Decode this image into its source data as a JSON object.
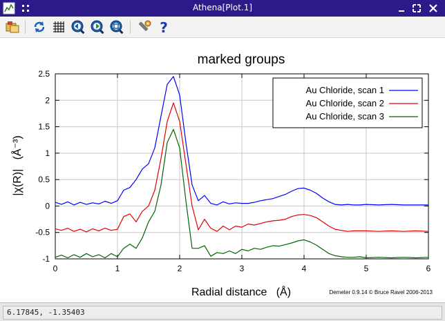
{
  "window": {
    "title": "Athena[Plot.1]",
    "controls": [
      "minimize-icon",
      "maximize-icon",
      "close-icon"
    ]
  },
  "toolbar": {
    "buttons": [
      {
        "name": "open-icon",
        "tooltip": ""
      },
      {
        "name": "refresh-icon",
        "tooltip": ""
      },
      {
        "name": "grid-icon",
        "tooltip": ""
      },
      {
        "name": "zoom-back-icon",
        "tooltip": ""
      },
      {
        "name": "zoom-forward-icon",
        "tooltip": ""
      },
      {
        "name": "zoom-icon",
        "tooltip": ""
      },
      {
        "name": "settings-icon",
        "tooltip": ""
      },
      {
        "name": "help-icon",
        "tooltip": ""
      }
    ]
  },
  "plot": {
    "credit": "Demeter 0.9.14 © Bruce Ravel 2006-2013"
  },
  "chart_data": {
    "type": "line",
    "title": "marked groups",
    "xlabel": "Radial distance   (Å)",
    "ylabel": "|χ(R)|   (Å⁻³)",
    "xlim": [
      0,
      6
    ],
    "ylim": [
      -1,
      2.5
    ],
    "xticks": [
      "0",
      "1",
      "2",
      "3",
      "4",
      "5",
      "6"
    ],
    "yticks": [
      "-1",
      "-0.5",
      "0",
      "0.5",
      "1",
      "1.5",
      "2",
      "2.5"
    ],
    "grid": true,
    "legend_position": "top-right",
    "x": [
      0,
      0.1,
      0.2,
      0.3,
      0.4,
      0.5,
      0.6,
      0.7,
      0.8,
      0.9,
      1.0,
      1.1,
      1.2,
      1.3,
      1.4,
      1.5,
      1.6,
      1.7,
      1.8,
      1.9,
      2.0,
      2.1,
      2.2,
      2.3,
      2.4,
      2.5,
      2.6,
      2.7,
      2.8,
      2.9,
      3.0,
      3.1,
      3.2,
      3.3,
      3.4,
      3.5,
      3.6,
      3.7,
      3.8,
      3.9,
      4.0,
      4.1,
      4.2,
      4.3,
      4.4,
      4.5,
      4.6,
      4.7,
      4.8,
      4.9,
      5.0,
      5.2,
      5.4,
      5.6,
      5.8,
      6.0
    ],
    "series": [
      {
        "name": "Au Chloride, scan 1",
        "color": "#0000ff",
        "values": [
          0.07,
          0.03,
          0.08,
          0.02,
          0.07,
          0.03,
          0.06,
          0.04,
          0.09,
          0.05,
          0.1,
          0.3,
          0.35,
          0.5,
          0.7,
          0.8,
          1.1,
          1.7,
          2.3,
          2.45,
          2.1,
          1.2,
          0.4,
          0.1,
          0.2,
          0.05,
          0.02,
          0.08,
          0.04,
          0.06,
          0.05,
          0.05,
          0.07,
          0.1,
          0.12,
          0.14,
          0.18,
          0.22,
          0.28,
          0.33,
          0.34,
          0.3,
          0.24,
          0.15,
          0.08,
          0.03,
          0.02,
          0.03,
          0.02,
          0.02,
          0.03,
          0.02,
          0.03,
          0.02,
          0.02,
          0.02
        ]
      },
      {
        "name": "Au Chloride, scan 2",
        "color": "#e00000",
        "values": [
          -0.43,
          -0.46,
          -0.42,
          -0.48,
          -0.44,
          -0.49,
          -0.43,
          -0.47,
          -0.42,
          -0.46,
          -0.44,
          -0.2,
          -0.15,
          -0.3,
          -0.1,
          0.0,
          0.3,
          0.9,
          1.6,
          1.95,
          1.6,
          0.8,
          0.0,
          -0.45,
          -0.25,
          -0.42,
          -0.48,
          -0.38,
          -0.45,
          -0.38,
          -0.4,
          -0.34,
          -0.36,
          -0.33,
          -0.3,
          -0.28,
          -0.27,
          -0.25,
          -0.2,
          -0.17,
          -0.16,
          -0.18,
          -0.22,
          -0.3,
          -0.38,
          -0.44,
          -0.46,
          -0.48,
          -0.47,
          -0.47,
          -0.47,
          -0.48,
          -0.47,
          -0.48,
          -0.47,
          -0.48
        ]
      },
      {
        "name": "Au Chloride, scan 3",
        "color": "#006400",
        "values": [
          -0.97,
          -0.93,
          -0.98,
          -0.92,
          -0.97,
          -0.9,
          -0.96,
          -0.92,
          -0.98,
          -0.9,
          -0.96,
          -0.8,
          -0.72,
          -0.8,
          -0.6,
          -0.3,
          -0.1,
          0.4,
          1.2,
          1.45,
          1.1,
          0.1,
          -0.8,
          -0.8,
          -0.75,
          -0.95,
          -0.88,
          -0.9,
          -0.85,
          -0.9,
          -0.82,
          -0.85,
          -0.8,
          -0.82,
          -0.78,
          -0.75,
          -0.76,
          -0.73,
          -0.7,
          -0.66,
          -0.64,
          -0.68,
          -0.74,
          -0.82,
          -0.9,
          -0.94,
          -0.96,
          -0.97,
          -0.97,
          -0.96,
          -0.98,
          -0.97,
          -0.98,
          -0.97,
          -0.98,
          -0.97
        ]
      }
    ]
  },
  "status": {
    "coords": "6.17845, -1.35403"
  }
}
